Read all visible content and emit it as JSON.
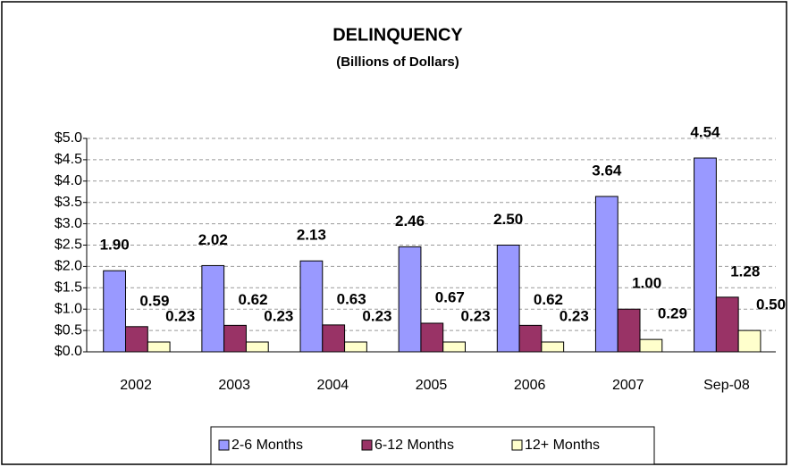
{
  "chart_data": {
    "type": "bar",
    "title": "DELINQUENCY",
    "subtitle": "(Billions of Dollars)",
    "categories": [
      "2002",
      "2003",
      "2004",
      "2005",
      "2006",
      "2007",
      "Sep-08"
    ],
    "series": [
      {
        "name": "2-6 Months",
        "color": "#9999ff",
        "values": [
          1.9,
          2.02,
          2.13,
          2.46,
          2.5,
          3.64,
          4.54
        ],
        "value_labels": [
          "1.90",
          "2.02",
          "2.13",
          "2.46",
          "2.50",
          "3.64",
          "4.54"
        ]
      },
      {
        "name": "6-12 Months",
        "color": "#993366",
        "values": [
          0.59,
          0.62,
          0.63,
          0.67,
          0.62,
          1.0,
          1.28
        ],
        "value_labels": [
          "0.59",
          "0.62",
          "0.63",
          "0.67",
          "0.62",
          "1.00",
          "1.28"
        ]
      },
      {
        "name": "12+ Months",
        "color": "#ffffcc",
        "values": [
          0.23,
          0.23,
          0.23,
          0.23,
          0.23,
          0.29,
          0.5
        ],
        "value_labels": [
          "0.23",
          "0.23",
          "0.23",
          "0.23",
          "0.23",
          "0.29",
          "0.50"
        ]
      }
    ],
    "ylim": [
      0,
      5
    ],
    "yticks": [
      {
        "value": 0,
        "label": "$0.0"
      },
      {
        "value": 0.5,
        "label": "$0.5"
      },
      {
        "value": 1,
        "label": "$1.0"
      },
      {
        "value": 1.5,
        "label": "$1.5"
      },
      {
        "value": 2,
        "label": "$2.0"
      },
      {
        "value": 2.5,
        "label": "$2.5"
      },
      {
        "value": 3,
        "label": "$3.0"
      },
      {
        "value": 3.5,
        "label": "$3.5"
      },
      {
        "value": 4,
        "label": "$4.0"
      },
      {
        "value": 4.5,
        "label": "$4.5"
      },
      {
        "value": 5,
        "label": "$5.0"
      }
    ],
    "grid": true,
    "legend": "bottom"
  }
}
